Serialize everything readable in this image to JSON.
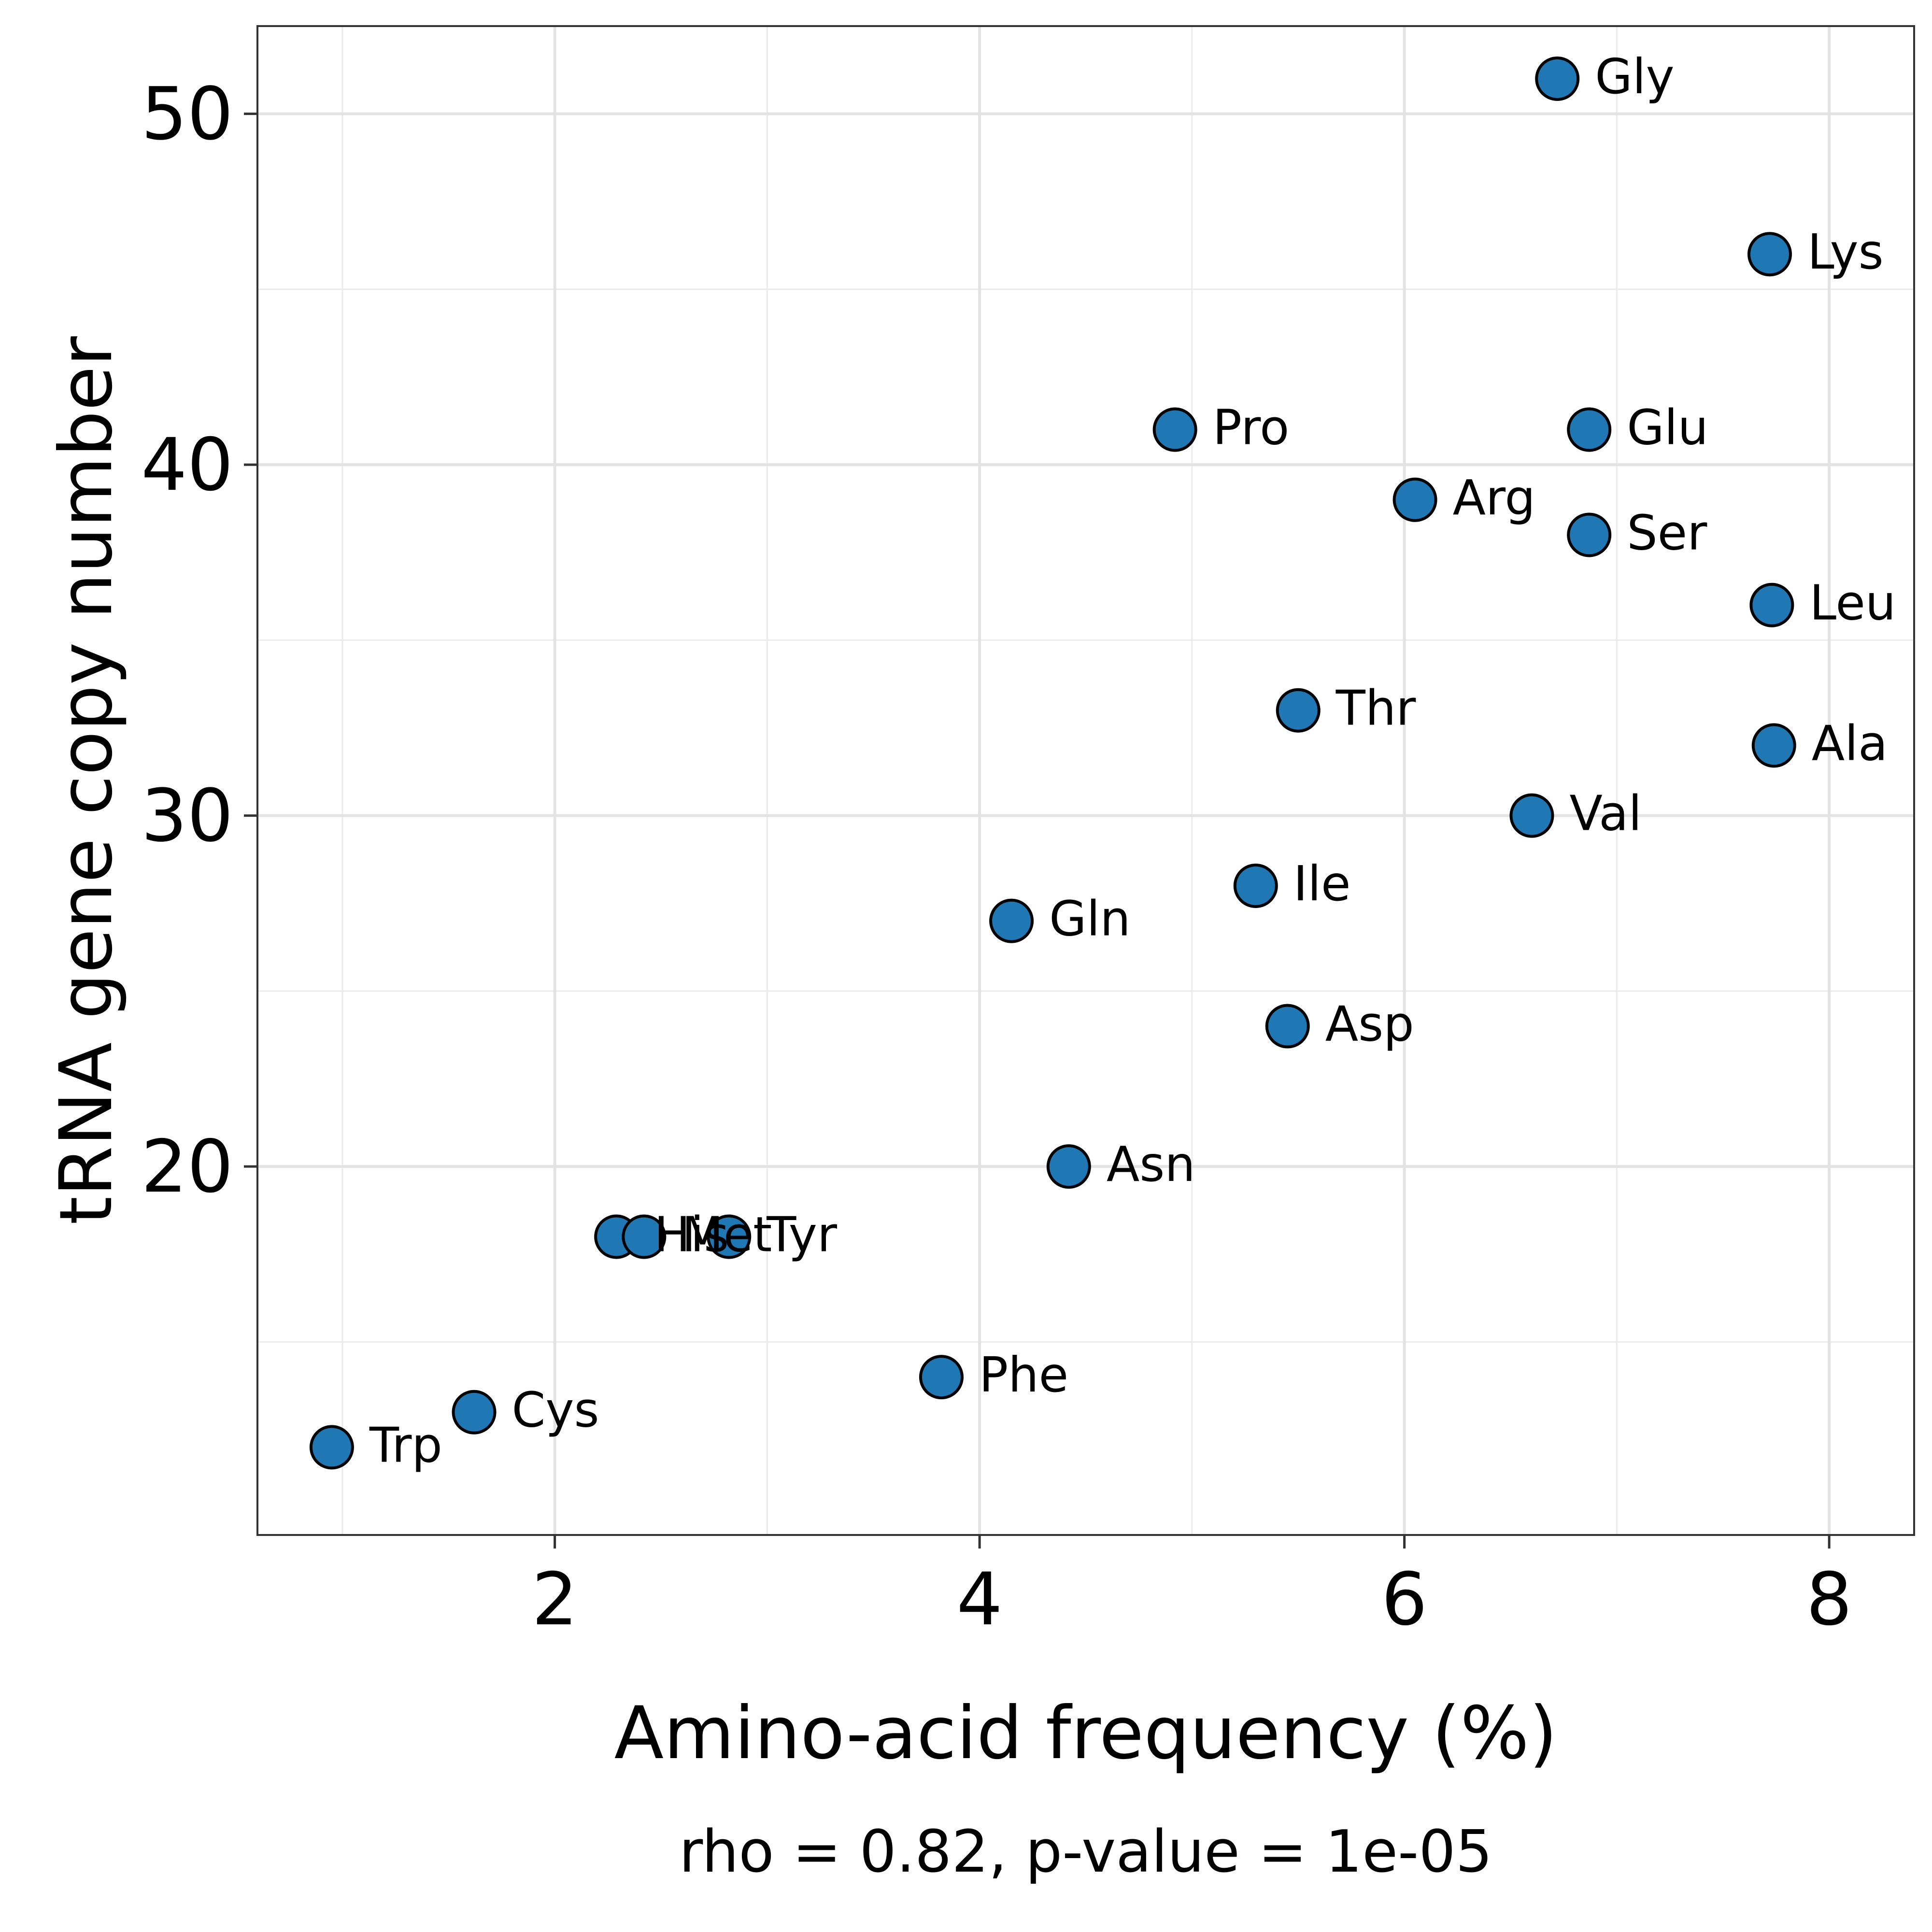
{
  "chart_data": {
    "type": "scatter",
    "title": "",
    "xlabel": "Amino-acid frequency (%)",
    "ylabel": "tRNA gene copy number",
    "caption": "rho = 0.82, p-value = 1e-05",
    "xlim": [
      0.6,
      8.4
    ],
    "ylim": [
      9.5,
      52.5
    ],
    "x_ticks": [
      2,
      4,
      6,
      8
    ],
    "y_ticks": [
      20,
      30,
      40,
      50
    ],
    "grid": true,
    "point_color": "#1F78B4",
    "points": [
      {
        "label": "Gly",
        "x": 6.72,
        "y": 51
      },
      {
        "label": "Lys",
        "x": 7.72,
        "y": 46
      },
      {
        "label": "Pro",
        "x": 4.92,
        "y": 41
      },
      {
        "label": "Glu",
        "x": 6.87,
        "y": 41
      },
      {
        "label": "Arg",
        "x": 6.05,
        "y": 39
      },
      {
        "label": "Ser",
        "x": 6.87,
        "y": 38
      },
      {
        "label": "Leu",
        "x": 7.73,
        "y": 36
      },
      {
        "label": "Thr",
        "x": 5.5,
        "y": 33
      },
      {
        "label": "Ala",
        "x": 7.74,
        "y": 32
      },
      {
        "label": "Val",
        "x": 6.6,
        "y": 30
      },
      {
        "label": "Ile",
        "x": 5.3,
        "y": 28
      },
      {
        "label": "Gln",
        "x": 4.15,
        "y": 27
      },
      {
        "label": "Asp",
        "x": 5.45,
        "y": 24
      },
      {
        "label": "Asn",
        "x": 4.42,
        "y": 20
      },
      {
        "label": "His",
        "x": 2.29,
        "y": 18
      },
      {
        "label": "Met",
        "x": 2.42,
        "y": 18
      },
      {
        "label": "Tyr",
        "x": 2.82,
        "y": 18
      },
      {
        "label": "Phe",
        "x": 3.82,
        "y": 14
      },
      {
        "label": "Cys",
        "x": 1.62,
        "y": 13
      },
      {
        "label": "Trp",
        "x": 0.95,
        "y": 12
      }
    ]
  }
}
